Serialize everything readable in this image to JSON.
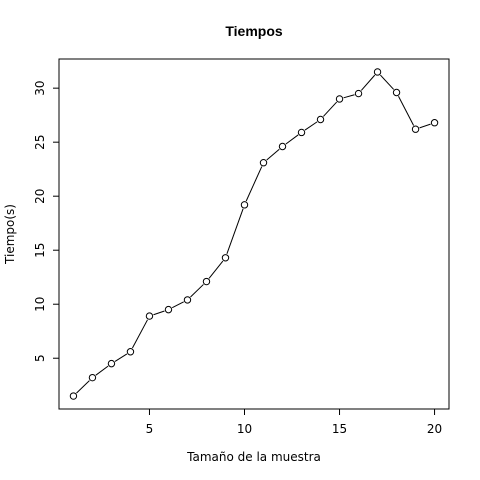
{
  "chart_data": {
    "type": "line",
    "title": "Tiempos",
    "xlabel": "Tamaño de la muestra",
    "ylabel": "Tiempo(s)",
    "x": [
      1,
      2,
      3,
      4,
      5,
      6,
      7,
      8,
      9,
      10,
      11,
      12,
      13,
      14,
      15,
      16,
      17,
      18,
      19,
      20
    ],
    "y": [
      1.5,
      3.2,
      4.5,
      5.6,
      8.9,
      9.5,
      10.4,
      12.1,
      14.3,
      19.2,
      23.1,
      24.6,
      25.9,
      27.1,
      29.0,
      29.5,
      31.5,
      29.6,
      26.2,
      26.8
    ],
    "xlim": [
      0.24,
      20.76
    ],
    "ylim": [
      0.3,
      32.7
    ],
    "xticks": [
      5,
      10,
      15,
      20
    ],
    "yticks": [
      5,
      10,
      15,
      20,
      25,
      30
    ],
    "grid": false,
    "line_color": "#000000",
    "marker": "open-circle"
  }
}
